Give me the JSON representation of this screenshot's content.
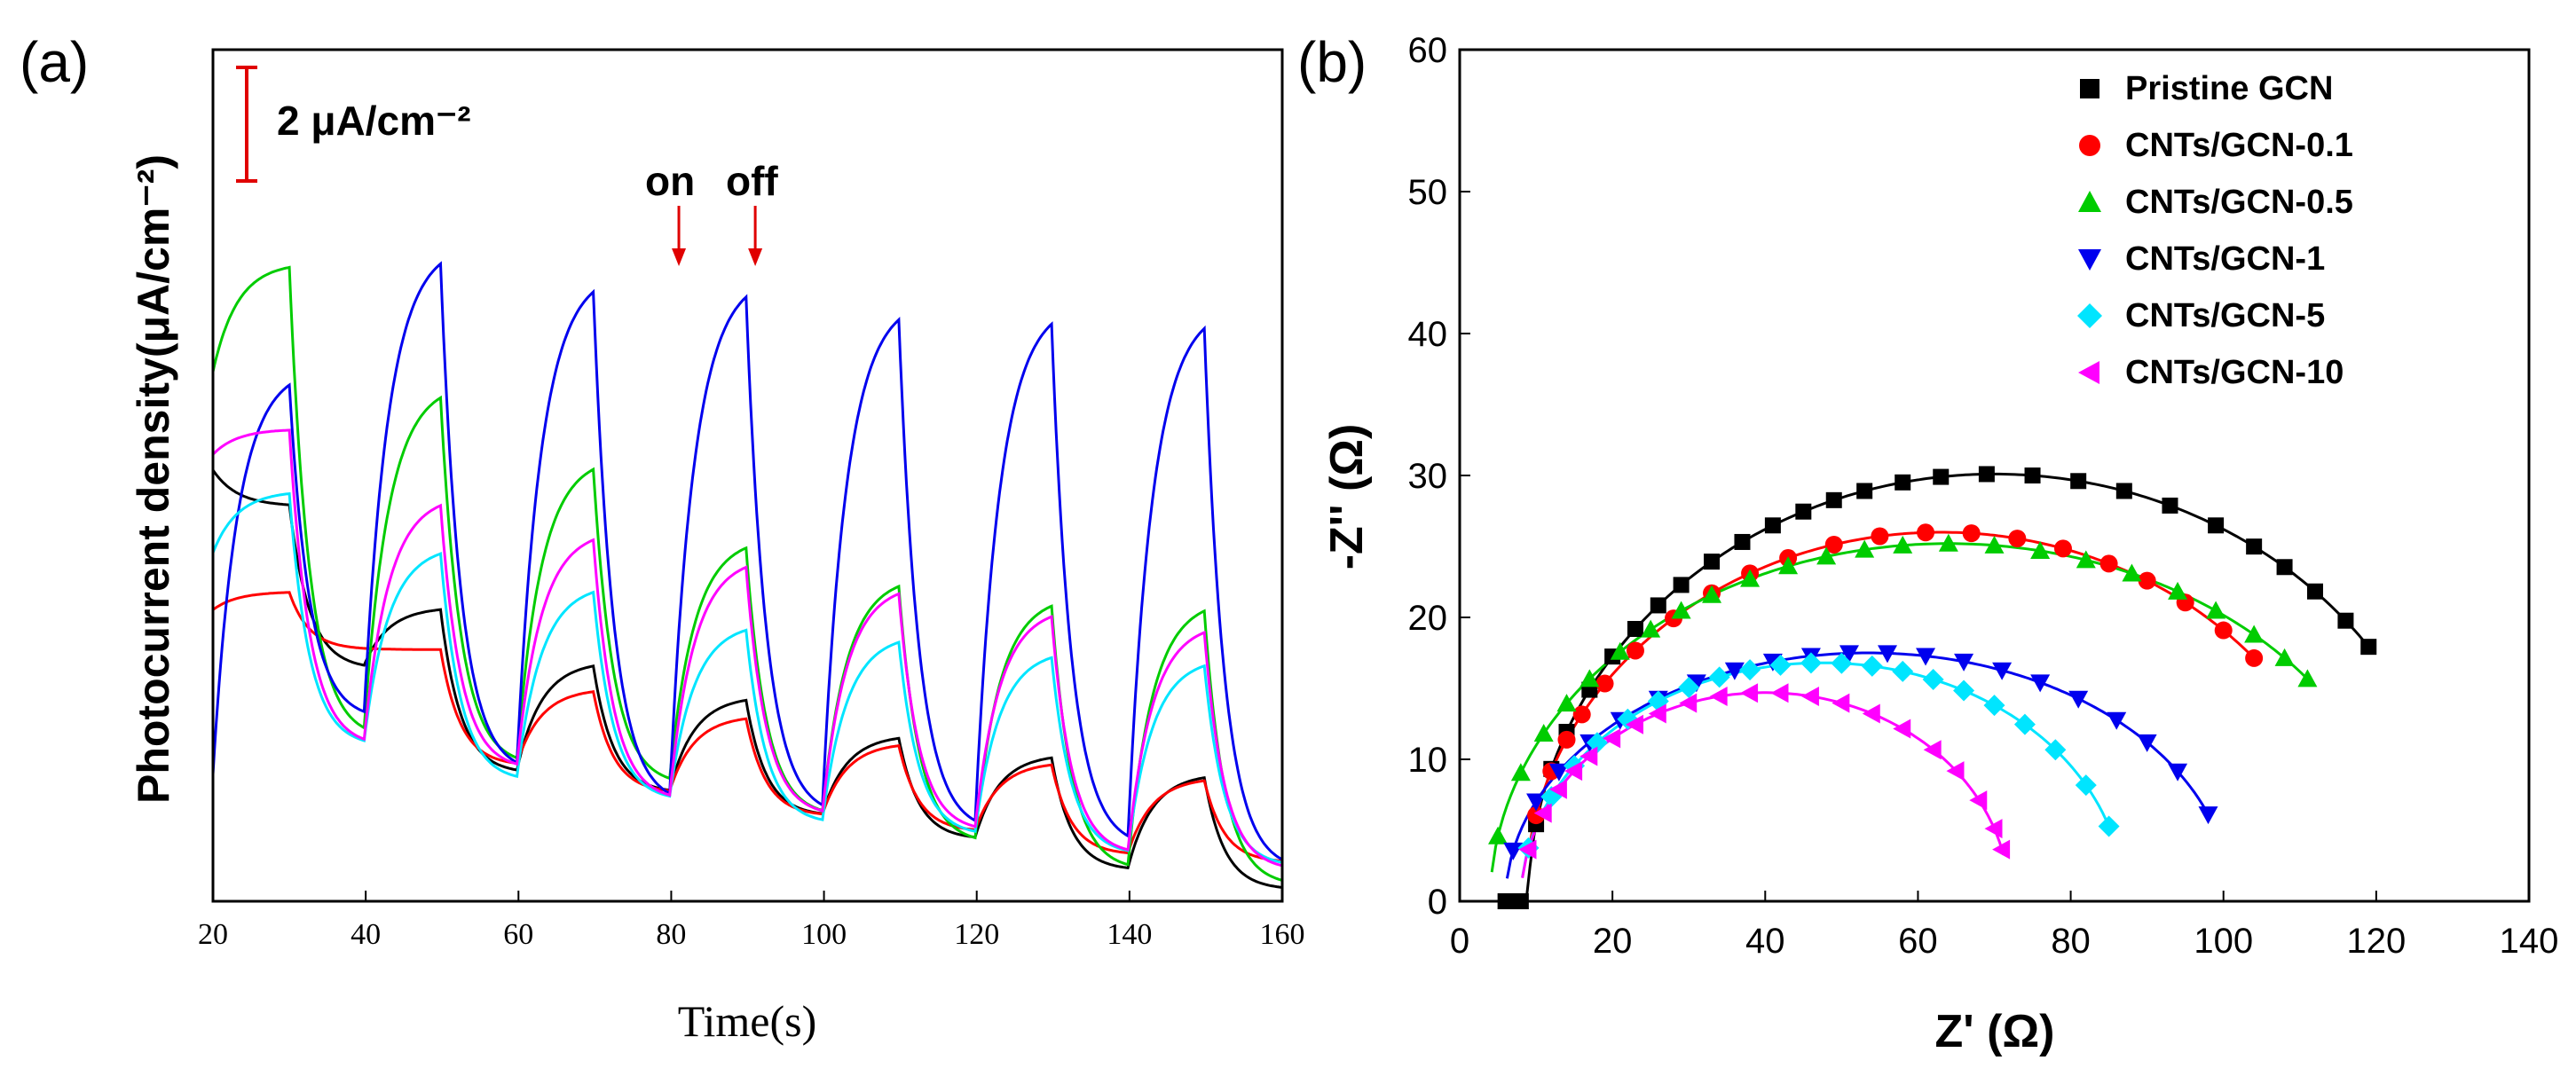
{
  "chart_data": [
    {
      "panel_label": "(a)",
      "type": "line",
      "title": "",
      "xlabel": "Time(s)",
      "ylabel": "Photocurrent density(μA/cm⁻²)",
      "xlim": [
        20,
        160
      ],
      "ylim": [
        0,
        22
      ],
      "x_ticks": [
        "20",
        "40",
        "60",
        "80",
        "100",
        "120",
        "140",
        "160"
      ],
      "y_ticks_shown": false,
      "grid": false,
      "scale_bar_label": "2 μA/cm⁻²",
      "scale_bar_value": 2,
      "annotations": [
        {
          "text": "on",
          "x": 81
        },
        {
          "text": "off",
          "x": 91
        }
      ],
      "light_on_intervals": [
        [
          20,
          30
        ],
        [
          40,
          50
        ],
        [
          60,
          70
        ],
        [
          80,
          90
        ],
        [
          100,
          110
        ],
        [
          120,
          130
        ],
        [
          140,
          150
        ]
      ],
      "series": [
        {
          "name": "Pristine GCN",
          "color": "#000000",
          "start": 11.2,
          "highs": [
            10.2,
            7.6,
            6.2,
            5.3,
            4.3,
            3.8,
            3.3
          ],
          "lows": [
            6.0,
            3.3,
            2.8,
            2.2,
            1.6,
            0.8,
            0.3
          ]
        },
        {
          "name": "CNTs/GCN-0.1",
          "color": "#ff0000",
          "start": 7.5,
          "highs": [
            8.0,
            6.5,
            5.5,
            4.8,
            4.1,
            3.6,
            3.2
          ],
          "lows": [
            6.5,
            3.5,
            2.8,
            2.2,
            1.8,
            1.2,
            1.0
          ]
        },
        {
          "name": "CNTs/GCN-0.5",
          "color": "#00cc00",
          "start": 13.5,
          "highs": [
            16.5,
            13.4,
            11.5,
            9.4,
            8.4,
            7.9,
            7.8
          ],
          "lows": [
            4.2,
            3.5,
            3.0,
            2.2,
            1.5,
            0.8,
            0.4
          ]
        },
        {
          "name": "CNTs/GCN-1",
          "color": "#0000ee",
          "start": 2.6,
          "highs": [
            13.8,
            17.0,
            16.3,
            16.2,
            15.6,
            15.5,
            15.4
          ],
          "lows": [
            4.7,
            3.3,
            2.5,
            2.2,
            1.8,
            1.4,
            0.8
          ]
        },
        {
          "name": "CNTs/GCN-5",
          "color": "#00e5ff",
          "start": 8.9,
          "highs": [
            10.6,
            9.2,
            8.2,
            7.2,
            6.9,
            6.5,
            6.3
          ],
          "lows": [
            4.0,
            3.1,
            2.6,
            2.0,
            1.7,
            1.2,
            0.9
          ]
        },
        {
          "name": "CNTs/GCN-10",
          "color": "#ff00ff",
          "start": 11.5,
          "highs": [
            12.2,
            10.5,
            9.6,
            8.9,
            8.2,
            7.6,
            7.2
          ],
          "lows": [
            4.0,
            3.4,
            2.6,
            2.2,
            1.8,
            1.2,
            0.8
          ]
        }
      ]
    },
    {
      "panel_label": "(b)",
      "type": "scatter",
      "title": "",
      "xlabel": "Z' (Ω)",
      "ylabel": "-Z'' (Ω)",
      "xlim": [
        0,
        140
      ],
      "ylim": [
        0,
        60
      ],
      "x_ticks": [
        "0",
        "20",
        "40",
        "60",
        "80",
        "100",
        "120",
        "140"
      ],
      "y_ticks": [
        "0",
        "10",
        "20",
        "30",
        "40",
        "50",
        "60"
      ],
      "grid": false,
      "legend_position": "top-right",
      "series": [
        {
          "name": "Pristine GCN",
          "color": "#000000",
          "marker": "square",
          "fit": {
            "x0": 5,
            "x1": 127,
            "xc": 70,
            "peak": 30.1
          },
          "points_x": [
            6,
            8,
            10,
            12,
            14,
            17,
            20,
            23,
            26,
            29,
            33,
            37,
            41,
            45,
            49,
            53,
            58,
            63,
            69,
            75,
            81,
            87,
            93,
            99,
            104,
            108,
            112,
            116,
            119
          ]
        },
        {
          "name": "CNTs/GCN-0.1",
          "color": "#ff0000",
          "marker": "circle",
          "fit": {
            "x0": 8,
            "x1": 117,
            "xc": 63,
            "peak": 26.0
          },
          "points_x": [
            10,
            12,
            14,
            16,
            19,
            23,
            28,
            33,
            38,
            43,
            49,
            55,
            61,
            67,
            73,
            79,
            85,
            90,
            95,
            100,
            104
          ]
        },
        {
          "name": "CNTs/GCN-0.5",
          "color": "#00cc00",
          "marker": "triangle-up",
          "fit": {
            "x0": 4,
            "x1": 124,
            "xc": 64,
            "peak": 25.2
          },
          "points_x": [
            5,
            8,
            11,
            14,
            17,
            21,
            25,
            29,
            33,
            38,
            43,
            48,
            53,
            58,
            64,
            70,
            76,
            82,
            88,
            94,
            99,
            104,
            108,
            111
          ]
        },
        {
          "name": "CNTs/GCN-1",
          "color": "#0000ee",
          "marker": "triangle-down",
          "fit": {
            "x0": 6,
            "x1": 101,
            "xc": 53.5,
            "peak": 17.5
          },
          "points_x": [
            7,
            10,
            13,
            17,
            21,
            26,
            31,
            36,
            41,
            46,
            51,
            56,
            61,
            66,
            71,
            76,
            81,
            86,
            90,
            94,
            98
          ]
        },
        {
          "name": "CNTs/GCN-5",
          "color": "#00e5ff",
          "marker": "diamond",
          "fit": {
            "x0": 8,
            "x1": 87,
            "xc": 47.5,
            "peak": 16.8
          },
          "points_x": [
            9,
            12,
            15,
            18,
            22,
            26,
            30,
            34,
            38,
            42,
            46,
            50,
            54,
            58,
            62,
            66,
            70,
            74,
            78,
            82,
            85
          ]
        },
        {
          "name": "CNTs/GCN-10",
          "color": "#ff00ff",
          "marker": "triangle-left",
          "fit": {
            "x0": 8,
            "x1": 72,
            "xc": 40,
            "peak": 14.7
          },
          "points_x": [
            9,
            11,
            13,
            15,
            17,
            20,
            23,
            26,
            30,
            34,
            38,
            42,
            46,
            50,
            54,
            58,
            62,
            65,
            68,
            70,
            71
          ]
        }
      ]
    }
  ]
}
